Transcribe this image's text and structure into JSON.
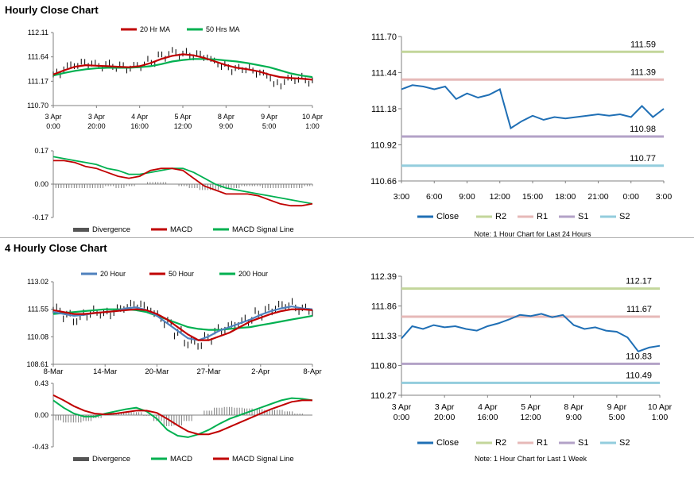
{
  "sections": [
    {
      "title": "Hourly Close Chart"
    },
    {
      "title": "4 Hourly Close Chart"
    }
  ],
  "colors": {
    "close": "#1f6fb5",
    "r2": "#c3d69b",
    "r1": "#e6b9b8",
    "s1": "#b3a2c7",
    "s2": "#93cddd",
    "ma_red": "#c00000",
    "ma_green": "#00b050",
    "ma_blue": "#4f81bd",
    "divergence": "#7f7f7f"
  },
  "chart_data": [
    {
      "id": "hourly-price",
      "type": "line",
      "legend": [
        "20 Hr MA",
        "50 Hrs MA"
      ],
      "y_ticks": [
        "112.11",
        "111.64",
        "111.17",
        "110.70"
      ],
      "ylim": [
        110.7,
        112.11
      ],
      "x_ticks": [
        [
          "3 Apr",
          "0:00"
        ],
        [
          "3 Apr",
          "20:00"
        ],
        [
          "4 Apr",
          "16:00"
        ],
        [
          "5 Apr",
          "12:00"
        ],
        [
          "8 Apr",
          "9:00"
        ],
        [
          "9 Apr",
          "5:00"
        ],
        [
          "10 Apr",
          "1:00"
        ]
      ],
      "series": [
        {
          "name": "Close",
          "values": [
            111.3,
            111.45,
            111.5,
            111.52,
            111.47,
            111.48,
            111.45,
            111.43,
            111.48,
            111.55,
            111.65,
            111.72,
            111.7,
            111.68,
            111.66,
            111.55,
            111.45,
            111.4,
            111.42,
            111.35,
            111.28,
            111.1,
            111.2,
            111.22,
            111.18
          ]
        },
        {
          "name": "20 Hr MA",
          "values": [
            111.3,
            111.38,
            111.45,
            111.48,
            111.47,
            111.46,
            111.45,
            111.44,
            111.46,
            111.52,
            111.6,
            111.66,
            111.69,
            111.67,
            111.62,
            111.55,
            111.48,
            111.43,
            111.4,
            111.36,
            111.3,
            111.25,
            111.23,
            111.22,
            111.2
          ]
        },
        {
          "name": "50 Hrs MA",
          "values": [
            111.28,
            111.33,
            111.37,
            111.4,
            111.42,
            111.43,
            111.43,
            111.43,
            111.44,
            111.46,
            111.5,
            111.55,
            111.58,
            111.6,
            111.6,
            111.59,
            111.57,
            111.55,
            111.52,
            111.48,
            111.44,
            111.38,
            111.32,
            111.28,
            111.25
          ]
        }
      ]
    },
    {
      "id": "hourly-macd",
      "type": "line",
      "legend": [
        "Divergence",
        "MACD",
        "MACD Signal Line"
      ],
      "y_ticks": [
        "0.17",
        "0.00",
        "-0.17"
      ],
      "ylim": [
        -0.17,
        0.17
      ],
      "series": [
        {
          "name": "MACD",
          "values": [
            0.12,
            0.12,
            0.11,
            0.09,
            0.08,
            0.06,
            0.04,
            0.03,
            0.04,
            0.07,
            0.08,
            0.08,
            0.07,
            0.03,
            -0.01,
            -0.03,
            -0.05,
            -0.05,
            -0.05,
            -0.06,
            -0.08,
            -0.1,
            -0.11,
            -0.11,
            -0.1
          ]
        },
        {
          "name": "MACD Signal Line",
          "values": [
            0.14,
            0.13,
            0.12,
            0.11,
            0.1,
            0.08,
            0.07,
            0.05,
            0.05,
            0.06,
            0.07,
            0.08,
            0.08,
            0.06,
            0.03,
            0.0,
            -0.02,
            -0.03,
            -0.04,
            -0.05,
            -0.06,
            -0.07,
            -0.08,
            -0.09,
            -0.1
          ]
        },
        {
          "name": "Divergence",
          "values": [
            -0.02,
            -0.02,
            -0.02,
            -0.02,
            -0.02,
            -0.01,
            -0.02,
            -0.01,
            0.0,
            0.01,
            0.01,
            0.0,
            -0.01,
            -0.02,
            -0.03,
            -0.03,
            -0.02,
            -0.02,
            -0.01,
            -0.01,
            -0.02,
            -0.02,
            -0.02,
            -0.02,
            -0.01
          ]
        }
      ]
    },
    {
      "id": "hourly-close-24h",
      "type": "line",
      "y_ticks": [
        "111.70",
        "111.44",
        "111.18",
        "110.92",
        "110.66"
      ],
      "ylim": [
        110.66,
        111.7
      ],
      "x_ticks": [
        "3:00",
        "6:00",
        "9:00",
        "12:00",
        "15:00",
        "18:00",
        "21:00",
        "0:00",
        "3:00"
      ],
      "levels": [
        {
          "name": "R2",
          "value": 111.59,
          "label": "111.59"
        },
        {
          "name": "R1",
          "value": 111.39,
          "label": "111.39"
        },
        {
          "name": "S1",
          "value": 110.98,
          "label": "110.98"
        },
        {
          "name": "S2",
          "value": 110.77,
          "label": "110.77"
        }
      ],
      "series": [
        {
          "name": "Close",
          "values": [
            111.32,
            111.35,
            111.34,
            111.32,
            111.34,
            111.25,
            111.29,
            111.26,
            111.28,
            111.32,
            111.04,
            111.09,
            111.13,
            111.1,
            111.12,
            111.11,
            111.12,
            111.13,
            111.14,
            111.13,
            111.14,
            111.12,
            111.2,
            111.12,
            111.18
          ]
        }
      ],
      "legend": [
        "Close",
        "R2",
        "R1",
        "S1",
        "S2"
      ],
      "note": "Note: 1 Hour Chart for Last 24 Hours"
    },
    {
      "id": "four-hourly-price",
      "type": "line",
      "legend": [
        "20 Hour",
        "50 Hour",
        "200 Hour"
      ],
      "y_ticks": [
        "113.02",
        "111.55",
        "110.08",
        "108.61"
      ],
      "ylim": [
        108.61,
        113.02
      ],
      "x_ticks": [
        "8-Mar",
        "14-Mar",
        "20-Mar",
        "27-Mar",
        "2-Apr",
        "8-Apr"
      ],
      "series": [
        {
          "name": "Close",
          "values": [
            111.5,
            111.2,
            111.0,
            111.3,
            111.4,
            111.3,
            111.5,
            111.7,
            111.8,
            111.6,
            111.2,
            110.8,
            110.3,
            109.8,
            109.7,
            110.0,
            110.4,
            110.6,
            110.8,
            111.0,
            111.3,
            111.5,
            111.7,
            111.8,
            111.6,
            111.5
          ]
        },
        {
          "name": "20 Hour",
          "values": [
            111.4,
            111.3,
            111.2,
            111.25,
            111.35,
            111.4,
            111.45,
            111.6,
            111.65,
            111.5,
            111.2,
            110.8,
            110.4,
            110.0,
            109.9,
            110.1,
            110.4,
            110.6,
            110.8,
            111.0,
            111.25,
            111.45,
            111.6,
            111.7,
            111.6,
            111.55
          ]
        },
        {
          "name": "50 Hour",
          "values": [
            111.5,
            111.4,
            111.3,
            111.3,
            111.35,
            111.4,
            111.45,
            111.5,
            111.55,
            111.5,
            111.3,
            111.0,
            110.6,
            110.2,
            109.9,
            109.9,
            110.1,
            110.3,
            110.6,
            110.9,
            111.1,
            111.3,
            111.45,
            111.55,
            111.55,
            111.5
          ]
        },
        {
          "name": "200 Hour",
          "values": [
            111.3,
            111.35,
            111.4,
            111.45,
            111.5,
            111.55,
            111.55,
            111.55,
            111.5,
            111.4,
            111.2,
            111.0,
            110.8,
            110.6,
            110.5,
            110.45,
            110.45,
            110.5,
            110.55,
            110.6,
            110.7,
            110.8,
            110.9,
            111.0,
            111.1,
            111.2
          ]
        }
      ]
    },
    {
      "id": "four-hourly-macd",
      "type": "line",
      "legend": [
        "Divergence",
        "MACD",
        "MACD Signal Line"
      ],
      "y_ticks": [
        "0.43",
        "0.00",
        "-0.43"
      ],
      "ylim": [
        -0.43,
        0.43
      ],
      "series": [
        {
          "name": "MACD",
          "values": [
            0.2,
            0.1,
            0.02,
            -0.02,
            -0.02,
            0.02,
            0.05,
            0.08,
            0.1,
            0.05,
            -0.05,
            -0.2,
            -0.28,
            -0.3,
            -0.26,
            -0.2,
            -0.12,
            -0.05,
            0.0,
            0.05,
            0.1,
            0.15,
            0.2,
            0.23,
            0.22,
            0.2
          ]
        },
        {
          "name": "MACD Signal Line",
          "values": [
            0.27,
            0.2,
            0.12,
            0.06,
            0.02,
            0.01,
            0.02,
            0.04,
            0.06,
            0.06,
            0.03,
            -0.05,
            -0.14,
            -0.22,
            -0.26,
            -0.26,
            -0.22,
            -0.16,
            -0.1,
            -0.04,
            0.02,
            0.08,
            0.13,
            0.18,
            0.2,
            0.2
          ]
        },
        {
          "name": "Divergence",
          "values": [
            -0.07,
            -0.1,
            -0.1,
            -0.08,
            -0.04,
            0.01,
            0.03,
            0.04,
            0.04,
            -0.01,
            -0.08,
            -0.15,
            -0.14,
            -0.08,
            0.0,
            0.06,
            0.1,
            0.11,
            0.1,
            0.09,
            0.08,
            0.07,
            0.07,
            0.05,
            0.02,
            0.0
          ]
        }
      ]
    },
    {
      "id": "hourly-close-1w",
      "type": "line",
      "y_ticks": [
        "112.39",
        "111.86",
        "111.33",
        "110.80",
        "110.27"
      ],
      "ylim": [
        110.27,
        112.39
      ],
      "x_ticks": [
        [
          "3 Apr",
          "0:00"
        ],
        [
          "3 Apr",
          "20:00"
        ],
        [
          "4 Apr",
          "16:00"
        ],
        [
          "5 Apr",
          "12:00"
        ],
        [
          "8 Apr",
          "9:00"
        ],
        [
          "9 Apr",
          "5:00"
        ],
        [
          "10 Apr",
          "1:00"
        ]
      ],
      "levels": [
        {
          "name": "R2",
          "value": 112.17,
          "label": "112.17"
        },
        {
          "name": "R1",
          "value": 111.67,
          "label": "111.67"
        },
        {
          "name": "S1",
          "value": 110.83,
          "label": "110.83"
        },
        {
          "name": "S2",
          "value": 110.49,
          "label": "110.49"
        }
      ],
      "series": [
        {
          "name": "Close",
          "values": [
            111.28,
            111.5,
            111.45,
            111.52,
            111.48,
            111.5,
            111.45,
            111.42,
            111.5,
            111.55,
            111.62,
            111.7,
            111.68,
            111.72,
            111.66,
            111.7,
            111.52,
            111.45,
            111.48,
            111.42,
            111.4,
            111.3,
            111.05,
            111.12,
            111.15
          ]
        }
      ],
      "legend": [
        "Close",
        "R2",
        "R1",
        "S1",
        "S2"
      ],
      "note": "Note: 1 Hour Chart for Last 1 Week"
    }
  ]
}
